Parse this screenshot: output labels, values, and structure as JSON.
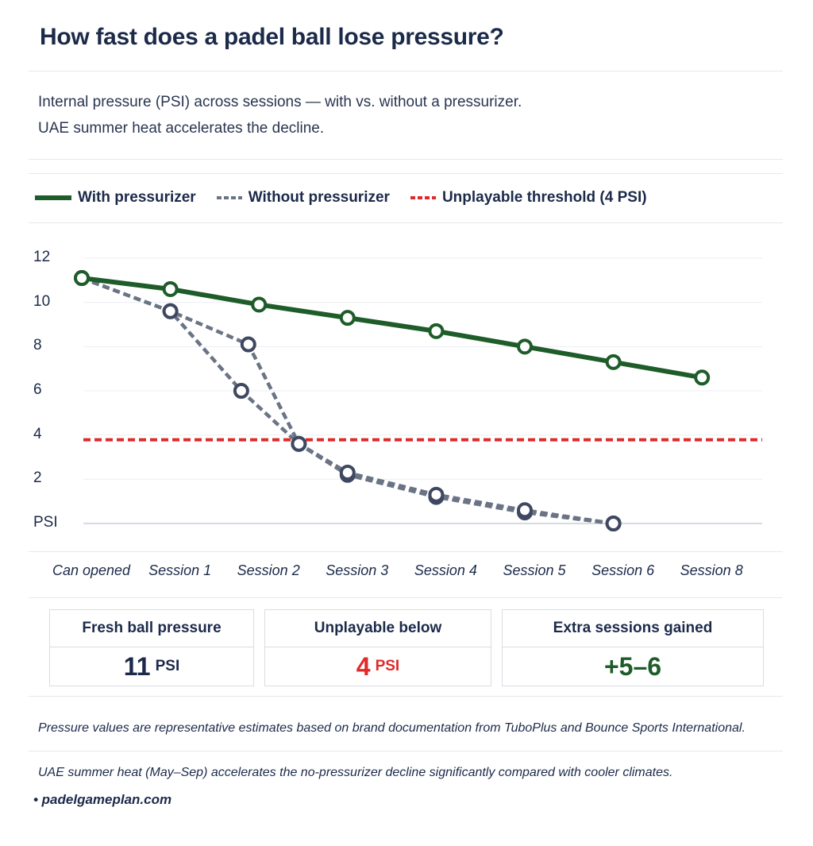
{
  "title": "How fast does a padel ball lose pressure?",
  "subtitle": [
    "Internal pressure (PSI) across sessions — with vs. without a pressurizer.",
    "UAE summer heat accelerates the decline."
  ],
  "legend": [
    {
      "label": "With pressurizer",
      "color": "#1e5c2a",
      "style": "solid"
    },
    {
      "label": "Without pressurizer",
      "color": "#6b7485",
      "style": "dashed"
    },
    {
      "label": "Unplayable threshold (4 PSI)",
      "color": "#e02a2a",
      "style": "dashed"
    }
  ],
  "chart_data": {
    "type": "line",
    "categories": [
      "Can opened",
      "Session 1",
      "Session 2",
      "Session 3",
      "Session 4",
      "Session 5",
      "Session 6",
      "Session 8"
    ],
    "y_tick_labels": [
      "PSI",
      "2",
      "4",
      "6",
      "8",
      "10",
      "12"
    ],
    "y_ticks": [
      0,
      2,
      4,
      6,
      8,
      10,
      12
    ],
    "ylim": [
      0,
      12
    ],
    "grid": true,
    "legend_position": "top-left",
    "series": [
      {
        "name": "With pressurizer",
        "color": "#1e5c2a",
        "style": "solid",
        "points": [
          [
            0,
            11.1
          ],
          [
            1,
            10.6
          ],
          [
            2,
            9.9
          ],
          [
            3,
            9.3
          ],
          [
            4,
            8.7
          ],
          [
            5,
            8.0
          ],
          [
            6,
            7.3
          ],
          [
            7,
            6.6
          ]
        ]
      },
      {
        "name": "Without pressurizer",
        "color": "#6b7485",
        "style": "dashed",
        "points": [
          [
            0,
            11.1
          ],
          [
            1,
            9.6
          ],
          [
            1.8,
            6.0
          ],
          [
            2.45,
            3.6
          ],
          [
            3,
            2.2
          ],
          [
            4,
            1.2
          ],
          [
            5,
            0.5
          ],
          [
            6,
            0.0
          ]
        ]
      },
      {
        "name": "Without pressurizer",
        "color": "#6b7485",
        "style": "dashed",
        "points": [
          [
            0,
            11.1
          ],
          [
            1,
            9.6
          ],
          [
            1.88,
            8.1
          ],
          [
            2.45,
            3.6
          ],
          [
            3,
            2.3
          ],
          [
            4,
            1.3
          ],
          [
            5,
            0.6
          ],
          [
            6,
            0.0
          ]
        ]
      }
    ],
    "threshold": {
      "label": "Unplayable threshold (4 PSI)",
      "value": 4,
      "color": "#e02a2a"
    }
  },
  "cards": [
    {
      "label": "Fresh ball pressure",
      "value": "11",
      "unit": "PSI",
      "color": "#1c2a4a"
    },
    {
      "label": "Unplayable below",
      "value": "4",
      "unit": "PSI",
      "color": "#e02a2a"
    },
    {
      "label": "Extra sessions gained",
      "value": "+5–6",
      "unit": "",
      "color": "#1e5c2a"
    }
  ],
  "notes": [
    "Pressure values are representative estimates based on brand documentation from TuboPlus and Bounce Sports International.",
    "UAE summer heat (May–Sep) accelerates the no-pressurizer decline significantly compared with cooler climates."
  ],
  "source": "• padelgameplan.com"
}
